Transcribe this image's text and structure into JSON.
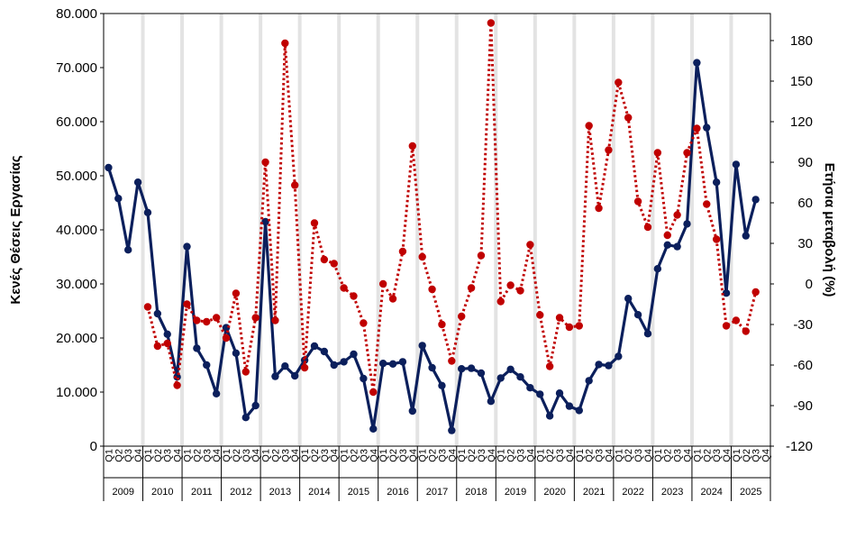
{
  "chart_data": {
    "type": "line",
    "title": "",
    "ylabel_left": "Κενές Θέσεις Εργασίας",
    "ylabel_right": "Ετήσια μεταβολή (%)",
    "left_axis": {
      "range": [
        0,
        80000
      ],
      "ticks": [
        0,
        10000,
        20000,
        30000,
        40000,
        50000,
        60000,
        70000,
        80000
      ],
      "tick_labels": [
        "0",
        "10.000",
        "20.000",
        "30.000",
        "40.000",
        "50.000",
        "60.000",
        "70.000",
        "80.000"
      ]
    },
    "right_axis": {
      "range": [
        -120,
        200
      ],
      "ticks": [
        -120,
        -90,
        -60,
        -30,
        0,
        30,
        60,
        90,
        120,
        150,
        180
      ],
      "tick_labels": [
        "-120",
        "-90",
        "-60",
        "-30",
        "0",
        "30",
        "60",
        "90",
        "120",
        "150",
        "180"
      ]
    },
    "years": [
      "2009",
      "2010",
      "2011",
      "2012",
      "2013",
      "2014",
      "2015",
      "2016",
      "2017",
      "2018",
      "2019",
      "2020",
      "2021",
      "2022",
      "2023",
      "2024",
      "2025"
    ],
    "quarters": [
      "Q1",
      "Q2",
      "Q3",
      "Q4"
    ],
    "series": [
      {
        "name": "Κενές Θέσεις Εργασίας",
        "axis": "left",
        "color": "#0b1f5c",
        "style": "solid",
        "values": [
          51500,
          45800,
          36300,
          48800,
          43200,
          24500,
          20700,
          12800,
          36900,
          18100,
          15000,
          9700,
          21900,
          17200,
          5300,
          7500,
          41500,
          12900,
          14800,
          13000,
          15900,
          18500,
          17500,
          15000,
          15600,
          17000,
          12500,
          3200,
          15300,
          15200,
          15600,
          6500,
          18600,
          14500,
          11200,
          2900,
          14300,
          14400,
          13500,
          8300,
          12600,
          14200,
          12800,
          10800,
          9600,
          5600,
          9800,
          7400,
          6600,
          12100,
          15100,
          14900,
          16600,
          27300,
          24300,
          20800,
          32800,
          37200,
          36900,
          41100,
          70900,
          58900,
          48800,
          28300,
          52100,
          38900,
          45600,
          null
        ]
      },
      {
        "name": "Ετήσια μεταβολή (%)",
        "axis": "right",
        "color": "#c00000",
        "style": "dotted",
        "values": [
          null,
          null,
          null,
          null,
          -17,
          -46,
          -44,
          -75,
          -15,
          -27,
          -28,
          -25,
          -40,
          -7,
          -65,
          -25,
          90,
          -27,
          178,
          73,
          -62,
          45,
          18,
          15,
          -3,
          -9,
          -29,
          -80,
          0,
          -11,
          24,
          102,
          20,
          -4,
          -30,
          -57,
          -24,
          -3,
          21,
          193,
          -13,
          -1,
          -5,
          29,
          -23,
          -61,
          -25,
          -32,
          -31,
          117,
          56,
          99,
          149,
          123,
          61,
          42,
          97,
          36,
          51,
          97,
          115,
          59,
          33,
          -31,
          -27,
          -35,
          -6,
          null
        ]
      }
    ]
  }
}
